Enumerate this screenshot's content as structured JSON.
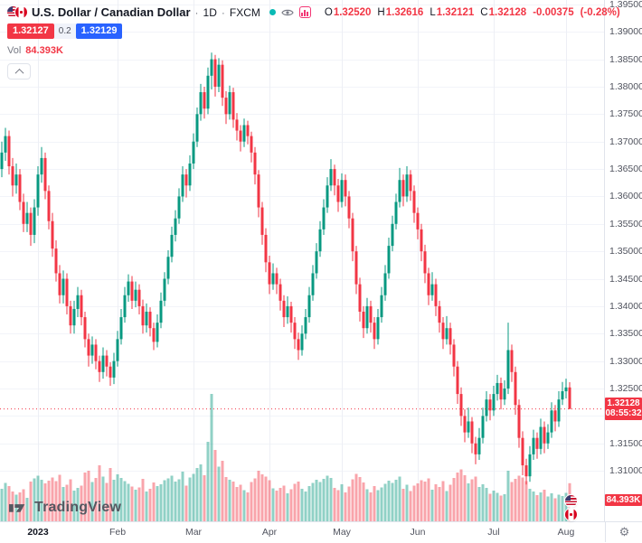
{
  "legend": {
    "symbol_title": "U.S. Dollar / Canadian Dollar",
    "dot": "·",
    "timeframe": "1D",
    "exchange": "FXCM",
    "ohlc": {
      "o_label": "O",
      "o": "1.32520",
      "h_label": "H",
      "h": "1.32616",
      "l_label": "L",
      "l": "1.32121",
      "c_label": "C",
      "c": "1.32128",
      "change": "-0.00375",
      "change_pct": "(-0.28%)"
    },
    "sell_price": "1.32127",
    "spread": "0.2",
    "buy_price": "1.32129",
    "vol_label": "Vol",
    "vol_value": "84.393K"
  },
  "axis": {
    "last_price": "1.32128",
    "countdown": "08:55:32",
    "volume_badge": "84.393K"
  },
  "footer": {
    "brand": "TradingView"
  },
  "icons": {
    "gear": "⚙"
  },
  "chart_data": {
    "type": "candlestick",
    "title": "U.S. Dollar / Canadian Dollar",
    "timeframe": "1D",
    "exchange": "FXCM",
    "colors": {
      "up": "#089981",
      "down": "#F23645",
      "grid_h": "#F2F4F9",
      "grid_v": "#EDEFF5",
      "last_line": "#F23645"
    },
    "y_range": [
      1.3008,
      1.3958
    ],
    "pane_width": 668,
    "pane_height": 577,
    "candle_spacing": 4,
    "x_offset": 2,
    "volume_scale": 0.5,
    "price_ticks": [
      "1.39500",
      "1.39000",
      "1.38500",
      "1.38000",
      "1.37500",
      "1.37000",
      "1.36500",
      "1.36000",
      "1.35500",
      "1.35000",
      "1.34500",
      "1.34000",
      "1.33500",
      "1.33000",
      "1.32500",
      "1.32000",
      "1.31500",
      "1.31000"
    ],
    "time_ticks": [
      {
        "label": "2023",
        "index": 10,
        "major": true
      },
      {
        "label": "Feb",
        "index": 32,
        "major": false
      },
      {
        "label": "Mar",
        "index": 53,
        "major": false
      },
      {
        "label": "Apr",
        "index": 74,
        "major": false
      },
      {
        "label": "May",
        "index": 94,
        "major": false
      },
      {
        "label": "Jun",
        "index": 115,
        "major": false
      },
      {
        "label": "Jul",
        "index": 136,
        "major": false
      },
      {
        "label": "Aug",
        "index": 156,
        "major": false
      }
    ],
    "columns": [
      "open",
      "high",
      "low",
      "close",
      "volume_k"
    ],
    "candles": [
      [
        1.365,
        1.37,
        1.3635,
        1.368,
        72
      ],
      [
        1.368,
        1.3725,
        1.3665,
        1.371,
        85
      ],
      [
        1.371,
        1.372,
        1.364,
        1.3655,
        78
      ],
      [
        1.3655,
        1.367,
        1.36,
        1.362,
        66
      ],
      [
        1.362,
        1.366,
        1.3605,
        1.364,
        59
      ],
      [
        1.364,
        1.365,
        1.3575,
        1.359,
        64
      ],
      [
        1.359,
        1.3605,
        1.3535,
        1.355,
        71
      ],
      [
        1.355,
        1.359,
        1.3535,
        1.357,
        52
      ],
      [
        1.357,
        1.358,
        1.351,
        1.353,
        88
      ],
      [
        1.353,
        1.3595,
        1.3515,
        1.358,
        95
      ],
      [
        1.358,
        1.3655,
        1.3565,
        1.364,
        101
      ],
      [
        1.364,
        1.369,
        1.3625,
        1.367,
        92
      ],
      [
        1.367,
        1.368,
        1.3595,
        1.361,
        84
      ],
      [
        1.361,
        1.362,
        1.354,
        1.3555,
        90
      ],
      [
        1.3555,
        1.357,
        1.349,
        1.3505,
        97
      ],
      [
        1.3505,
        1.352,
        1.3445,
        1.346,
        89
      ],
      [
        1.346,
        1.3475,
        1.3405,
        1.342,
        103
      ],
      [
        1.342,
        1.3465,
        1.3405,
        1.345,
        76
      ],
      [
        1.345,
        1.346,
        1.3385,
        1.34,
        81
      ],
      [
        1.34,
        1.341,
        1.335,
        1.3365,
        93
      ],
      [
        1.3365,
        1.341,
        1.335,
        1.3395,
        68
      ],
      [
        1.3395,
        1.3435,
        1.338,
        1.342,
        74
      ],
      [
        1.342,
        1.343,
        1.3365,
        1.338,
        79
      ],
      [
        1.338,
        1.339,
        1.3325,
        1.334,
        108
      ],
      [
        1.334,
        1.335,
        1.329,
        1.331,
        112
      ],
      [
        1.331,
        1.3345,
        1.3295,
        1.333,
        87
      ],
      [
        1.333,
        1.334,
        1.3285,
        1.33,
        96
      ],
      [
        1.33,
        1.331,
        1.3262,
        1.328,
        124
      ],
      [
        1.328,
        1.3325,
        1.3268,
        1.331,
        99
      ],
      [
        1.331,
        1.332,
        1.3272,
        1.329,
        85
      ],
      [
        1.329,
        1.3298,
        1.3255,
        1.327,
        118
      ],
      [
        1.327,
        1.3315,
        1.3258,
        1.33,
        92
      ],
      [
        1.33,
        1.3355,
        1.329,
        1.334,
        104
      ],
      [
        1.334,
        1.3395,
        1.333,
        1.338,
        96
      ],
      [
        1.338,
        1.3435,
        1.337,
        1.342,
        89
      ],
      [
        1.342,
        1.3458,
        1.3408,
        1.3445,
        83
      ],
      [
        1.3445,
        1.3455,
        1.3395,
        1.341,
        77
      ],
      [
        1.341,
        1.3445,
        1.3398,
        1.343,
        70
      ],
      [
        1.343,
        1.344,
        1.3385,
        1.34,
        75
      ],
      [
        1.34,
        1.3412,
        1.335,
        1.3365,
        94
      ],
      [
        1.3365,
        1.3405,
        1.3352,
        1.339,
        66
      ],
      [
        1.339,
        1.3398,
        1.3345,
        1.336,
        72
      ],
      [
        1.336,
        1.337,
        1.332,
        1.3335,
        86
      ],
      [
        1.3335,
        1.3385,
        1.3325,
        1.337,
        78
      ],
      [
        1.337,
        1.3425,
        1.336,
        1.341,
        82
      ],
      [
        1.341,
        1.3462,
        1.34,
        1.345,
        91
      ],
      [
        1.345,
        1.3502,
        1.344,
        1.349,
        95
      ],
      [
        1.349,
        1.3545,
        1.348,
        1.353,
        101
      ],
      [
        1.353,
        1.3575,
        1.3518,
        1.356,
        88
      ],
      [
        1.356,
        1.3615,
        1.355,
        1.36,
        93
      ],
      [
        1.36,
        1.3655,
        1.359,
        1.364,
        110
      ],
      [
        1.364,
        1.365,
        1.3598,
        1.362,
        79
      ],
      [
        1.362,
        1.3675,
        1.361,
        1.366,
        97
      ],
      [
        1.366,
        1.3715,
        1.365,
        1.37,
        105
      ],
      [
        1.37,
        1.3762,
        1.369,
        1.375,
        118
      ],
      [
        1.375,
        1.3805,
        1.3738,
        1.379,
        126
      ],
      [
        1.379,
        1.38,
        1.3742,
        1.376,
        102
      ],
      [
        1.376,
        1.3835,
        1.375,
        1.382,
        176
      ],
      [
        1.382,
        1.3862,
        1.3795,
        1.385,
        282
      ],
      [
        1.385,
        1.3858,
        1.3782,
        1.38,
        158
      ],
      [
        1.38,
        1.3852,
        1.379,
        1.384,
        121
      ],
      [
        1.384,
        1.3848,
        1.3765,
        1.378,
        134
      ],
      [
        1.378,
        1.3792,
        1.3732,
        1.375,
        98
      ],
      [
        1.375,
        1.3802,
        1.374,
        1.379,
        92
      ],
      [
        1.379,
        1.3798,
        1.3725,
        1.374,
        88
      ],
      [
        1.374,
        1.3752,
        1.3702,
        1.372,
        76
      ],
      [
        1.372,
        1.373,
        1.3682,
        1.37,
        81
      ],
      [
        1.37,
        1.3742,
        1.369,
        1.373,
        69
      ],
      [
        1.373,
        1.3738,
        1.3695,
        1.371,
        64
      ],
      [
        1.371,
        1.3718,
        1.3662,
        1.368,
        87
      ],
      [
        1.368,
        1.369,
        1.3622,
        1.364,
        95
      ],
      [
        1.364,
        1.3648,
        1.3562,
        1.358,
        112
      ],
      [
        1.358,
        1.359,
        1.3512,
        1.353,
        104
      ],
      [
        1.353,
        1.3542,
        1.3462,
        1.348,
        99
      ],
      [
        1.348,
        1.3492,
        1.3422,
        1.344,
        91
      ],
      [
        1.344,
        1.3478,
        1.343,
        1.346,
        73
      ],
      [
        1.346,
        1.347,
        1.3422,
        1.344,
        68
      ],
      [
        1.344,
        1.345,
        1.3392,
        1.341,
        74
      ],
      [
        1.341,
        1.342,
        1.3362,
        1.338,
        79
      ],
      [
        1.338,
        1.3418,
        1.3368,
        1.34,
        62
      ],
      [
        1.34,
        1.3408,
        1.3352,
        1.337,
        71
      ],
      [
        1.337,
        1.338,
        1.3322,
        1.334,
        83
      ],
      [
        1.334,
        1.3352,
        1.3302,
        1.332,
        88
      ],
      [
        1.332,
        1.3365,
        1.331,
        1.335,
        72
      ],
      [
        1.335,
        1.3395,
        1.334,
        1.338,
        66
      ],
      [
        1.338,
        1.3435,
        1.337,
        1.342,
        78
      ],
      [
        1.342,
        1.3475,
        1.341,
        1.346,
        85
      ],
      [
        1.346,
        1.3515,
        1.345,
        1.35,
        92
      ],
      [
        1.35,
        1.3555,
        1.349,
        1.354,
        87
      ],
      [
        1.354,
        1.3595,
        1.353,
        1.358,
        94
      ],
      [
        1.358,
        1.3635,
        1.357,
        1.362,
        101
      ],
      [
        1.362,
        1.3668,
        1.361,
        1.365,
        96
      ],
      [
        1.365,
        1.3658,
        1.3602,
        1.362,
        74
      ],
      [
        1.362,
        1.3632,
        1.3572,
        1.359,
        69
      ],
      [
        1.359,
        1.3642,
        1.358,
        1.363,
        82
      ],
      [
        1.363,
        1.364,
        1.3582,
        1.36,
        64
      ],
      [
        1.36,
        1.361,
        1.3542,
        1.356,
        77
      ],
      [
        1.356,
        1.357,
        1.3482,
        1.35,
        93
      ],
      [
        1.35,
        1.351,
        1.3422,
        1.344,
        105
      ],
      [
        1.344,
        1.3452,
        1.3372,
        1.339,
        98
      ],
      [
        1.339,
        1.34,
        1.3342,
        1.336,
        86
      ],
      [
        1.336,
        1.3415,
        1.335,
        1.34,
        71
      ],
      [
        1.34,
        1.341,
        1.3352,
        1.337,
        64
      ],
      [
        1.337,
        1.338,
        1.3322,
        1.334,
        78
      ],
      [
        1.334,
        1.3395,
        1.333,
        1.338,
        69
      ],
      [
        1.338,
        1.3435,
        1.337,
        1.342,
        75
      ],
      [
        1.342,
        1.3475,
        1.341,
        1.346,
        83
      ],
      [
        1.346,
        1.3525,
        1.345,
        1.351,
        90
      ],
      [
        1.351,
        1.3565,
        1.35,
        1.355,
        85
      ],
      [
        1.355,
        1.3605,
        1.354,
        1.359,
        92
      ],
      [
        1.359,
        1.3652,
        1.358,
        1.363,
        99
      ],
      [
        1.363,
        1.364,
        1.3582,
        1.36,
        72
      ],
      [
        1.36,
        1.3655,
        1.359,
        1.364,
        81
      ],
      [
        1.364,
        1.3648,
        1.3592,
        1.361,
        67
      ],
      [
        1.361,
        1.362,
        1.3552,
        1.357,
        79
      ],
      [
        1.357,
        1.358,
        1.3522,
        1.354,
        84
      ],
      [
        1.354,
        1.355,
        1.3482,
        1.35,
        91
      ],
      [
        1.35,
        1.3512,
        1.3442,
        1.346,
        88
      ],
      [
        1.346,
        1.347,
        1.3402,
        1.342,
        95
      ],
      [
        1.342,
        1.3462,
        1.341,
        1.344,
        70
      ],
      [
        1.344,
        1.345,
        1.3382,
        1.34,
        82
      ],
      [
        1.34,
        1.341,
        1.3352,
        1.337,
        76
      ],
      [
        1.337,
        1.338,
        1.3322,
        1.334,
        89
      ],
      [
        1.334,
        1.3382,
        1.333,
        1.336,
        67
      ],
      [
        1.336,
        1.337,
        1.3312,
        1.333,
        81
      ],
      [
        1.333,
        1.334,
        1.3272,
        1.329,
        96
      ],
      [
        1.329,
        1.33,
        1.3222,
        1.324,
        108
      ],
      [
        1.324,
        1.3252,
        1.3182,
        1.32,
        115
      ],
      [
        1.32,
        1.3212,
        1.3152,
        1.317,
        102
      ],
      [
        1.317,
        1.3215,
        1.316,
        1.319,
        84
      ],
      [
        1.319,
        1.3198,
        1.3132,
        1.315,
        93
      ],
      [
        1.315,
        1.3162,
        1.3112,
        1.313,
        99
      ],
      [
        1.313,
        1.3178,
        1.312,
        1.316,
        76
      ],
      [
        1.316,
        1.3215,
        1.315,
        1.32,
        82
      ],
      [
        1.32,
        1.3245,
        1.319,
        1.323,
        74
      ],
      [
        1.323,
        1.324,
        1.3192,
        1.321,
        61
      ],
      [
        1.321,
        1.3255,
        1.32,
        1.324,
        68
      ],
      [
        1.324,
        1.3275,
        1.3228,
        1.326,
        63
      ],
      [
        1.326,
        1.327,
        1.3212,
        1.323,
        57
      ],
      [
        1.323,
        1.3265,
        1.322,
        1.325,
        60
      ],
      [
        1.325,
        1.337,
        1.324,
        1.332,
        112
      ],
      [
        1.332,
        1.333,
        1.3262,
        1.328,
        87
      ],
      [
        1.328,
        1.329,
        1.3202,
        1.322,
        94
      ],
      [
        1.322,
        1.323,
        1.3142,
        1.316,
        101
      ],
      [
        1.316,
        1.3172,
        1.3092,
        1.311,
        97
      ],
      [
        1.311,
        1.3122,
        1.3075,
        1.309,
        89
      ],
      [
        1.309,
        1.3145,
        1.308,
        1.313,
        72
      ],
      [
        1.313,
        1.3175,
        1.312,
        1.316,
        66
      ],
      [
        1.316,
        1.317,
        1.3122,
        1.314,
        58
      ],
      [
        1.314,
        1.3195,
        1.313,
        1.318,
        64
      ],
      [
        1.318,
        1.319,
        1.3132,
        1.315,
        70
      ],
      [
        1.315,
        1.3185,
        1.314,
        1.317,
        55
      ],
      [
        1.317,
        1.3225,
        1.316,
        1.321,
        62
      ],
      [
        1.321,
        1.322,
        1.3172,
        1.319,
        51
      ],
      [
        1.319,
        1.3245,
        1.318,
        1.323,
        59
      ],
      [
        1.323,
        1.3262,
        1.322,
        1.3245,
        56
      ],
      [
        1.3245,
        1.3268,
        1.3232,
        1.3252,
        63
      ],
      [
        1.3252,
        1.32616,
        1.32121,
        1.32128,
        84.393
      ]
    ]
  }
}
